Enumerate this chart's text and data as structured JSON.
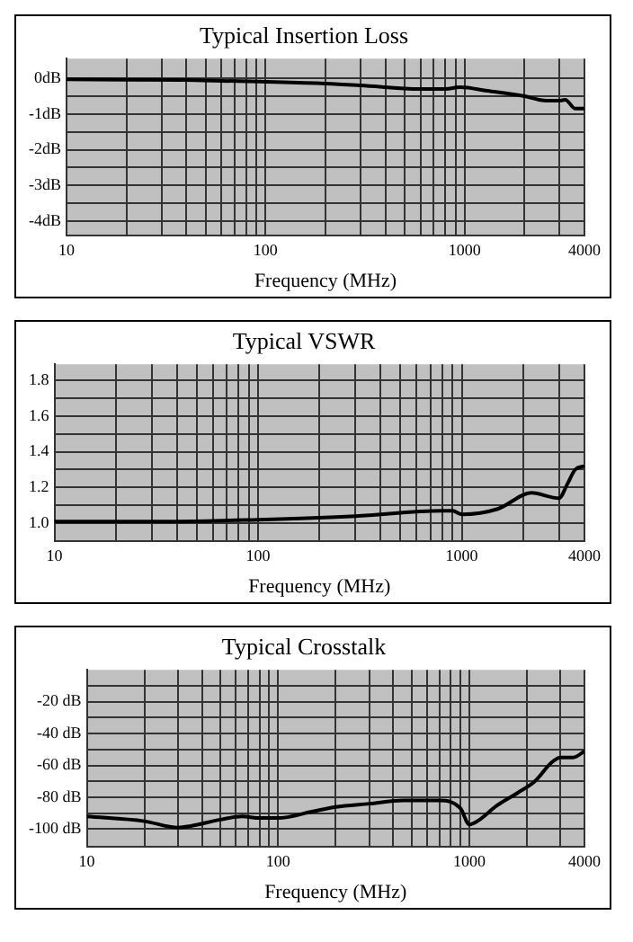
{
  "chart_data": [
    {
      "type": "line",
      "title": "Typical Insertion Loss",
      "xlabel": "Frequency (MHz)",
      "log": "x",
      "grid": true,
      "marker": "none",
      "line_style": "solid",
      "xlim": [
        10,
        4000
      ],
      "xticks": [
        10,
        {
          "value": 20,
          "label": null
        },
        {
          "value": 30,
          "label": null
        },
        {
          "value": 40,
          "label": null
        },
        {
          "value": 50,
          "label": null
        },
        {
          "value": 60,
          "label": null
        },
        {
          "value": 70,
          "label": null
        },
        {
          "value": 80,
          "label": null
        },
        {
          "value": 90,
          "label": null
        },
        100,
        {
          "value": 200,
          "label": null
        },
        {
          "value": 300,
          "label": null
        },
        {
          "value": 400,
          "label": null
        },
        {
          "value": 500,
          "label": null
        },
        {
          "value": 600,
          "label": null
        },
        {
          "value": 700,
          "label": null
        },
        {
          "value": 800,
          "label": null
        },
        {
          "value": 900,
          "label": null
        },
        1000,
        {
          "value": 2000,
          "label": null
        },
        {
          "value": 3000,
          "label": null
        },
        4000
      ],
      "ylim": [
        -4.4,
        0.55
      ],
      "yticks": [
        {
          "value": 0,
          "label": "0dB"
        },
        {
          "value": -0.5,
          "label": null
        },
        {
          "value": -1,
          "label": "-1dB"
        },
        {
          "value": -1.5,
          "label": null
        },
        {
          "value": -2,
          "label": "-2dB"
        },
        {
          "value": -2.5,
          "label": null
        },
        {
          "value": -3,
          "label": "-3dB"
        },
        {
          "value": -3.5,
          "label": null
        },
        {
          "value": -4,
          "label": "-4dB"
        }
      ],
      "series": [
        {
          "color": "#000000",
          "x": [
            10,
            20,
            40,
            100,
            200,
            300,
            600,
            800,
            950,
            1300,
            2000,
            2500,
            3000,
            3200,
            3600,
            4000
          ],
          "values": [
            -0.03,
            -0.04,
            -0.05,
            -0.1,
            -0.15,
            -0.2,
            -0.3,
            -0.3,
            -0.25,
            -0.35,
            -0.5,
            -0.62,
            -0.63,
            -0.6,
            -0.85,
            -0.85
          ]
        }
      ]
    },
    {
      "type": "line",
      "title": "Typical VSWR",
      "xlabel": "Frequency (MHz)",
      "log": "x",
      "grid": true,
      "marker": "none",
      "line_style": "solid",
      "xlim": [
        10,
        4000
      ],
      "xticks": [
        10,
        {
          "value": 20,
          "label": null
        },
        {
          "value": 30,
          "label": null
        },
        {
          "value": 40,
          "label": null
        },
        {
          "value": 50,
          "label": null
        },
        {
          "value": 60,
          "label": null
        },
        {
          "value": 70,
          "label": null
        },
        {
          "value": 80,
          "label": null
        },
        {
          "value": 90,
          "label": null
        },
        100,
        {
          "value": 200,
          "label": null
        },
        {
          "value": 300,
          "label": null
        },
        {
          "value": 400,
          "label": null
        },
        {
          "value": 500,
          "label": null
        },
        {
          "value": 600,
          "label": null
        },
        {
          "value": 700,
          "label": null
        },
        {
          "value": 800,
          "label": null
        },
        {
          "value": 900,
          "label": null
        },
        1000,
        {
          "value": 2000,
          "label": null
        },
        {
          "value": 3000,
          "label": null
        },
        4000
      ],
      "ylim": [
        0.9,
        1.89
      ],
      "yticks": [
        {
          "value": 1,
          "label": "1.0"
        },
        {
          "value": 1.1,
          "label": null
        },
        1.2,
        {
          "value": 1.3,
          "label": null
        },
        1.4,
        {
          "value": 1.5,
          "label": null
        },
        1.6,
        {
          "value": 1.7,
          "label": null
        },
        1.8
      ],
      "series": [
        {
          "color": "#000000",
          "x": [
            10,
            40,
            100,
            300,
            800,
            900,
            1000,
            1500,
            2200,
            3000,
            3300,
            3600,
            4000
          ],
          "values": [
            1.01,
            1.01,
            1.02,
            1.04,
            1.07,
            1.07,
            1.05,
            1.08,
            1.17,
            1.14,
            1.22,
            1.3,
            1.32
          ]
        }
      ]
    },
    {
      "type": "line",
      "title": "Typical Crosstalk",
      "xlabel": "Frequency (MHz)",
      "log": "x",
      "grid": true,
      "marker": "none",
      "line_style": "solid",
      "xlim": [
        10,
        4000
      ],
      "xticks": [
        10,
        {
          "value": 20,
          "label": null
        },
        {
          "value": 30,
          "label": null
        },
        {
          "value": 40,
          "label": null
        },
        {
          "value": 50,
          "label": null
        },
        {
          "value": 60,
          "label": null
        },
        {
          "value": 70,
          "label": null
        },
        {
          "value": 80,
          "label": null
        },
        {
          "value": 90,
          "label": null
        },
        100,
        {
          "value": 200,
          "label": null
        },
        {
          "value": 300,
          "label": null
        },
        {
          "value": 400,
          "label": null
        },
        {
          "value": 500,
          "label": null
        },
        {
          "value": 600,
          "label": null
        },
        {
          "value": 700,
          "label": null
        },
        {
          "value": 800,
          "label": null
        },
        {
          "value": 900,
          "label": null
        },
        1000,
        {
          "value": 2000,
          "label": null
        },
        {
          "value": 3000,
          "label": null
        },
        4000
      ],
      "ylim": [
        -111,
        0
      ],
      "yticks": [
        {
          "value": -10,
          "label": null
        },
        {
          "value": -20,
          "label": "-20 dB"
        },
        {
          "value": -30,
          "label": null
        },
        {
          "value": -40,
          "label": "-40 dB"
        },
        {
          "value": -50,
          "label": null
        },
        {
          "value": -60,
          "label": "-60 dB"
        },
        {
          "value": -70,
          "label": null
        },
        {
          "value": -80,
          "label": "-80 dB"
        },
        {
          "value": -90,
          "label": null
        },
        {
          "value": -100,
          "label": "-100 dB"
        }
      ],
      "series": [
        {
          "color": "#000000",
          "x": [
            10,
            20,
            30,
            35,
            50,
            65,
            80,
            100,
            150,
            200,
            300,
            450,
            700,
            900,
            1000,
            1100,
            1400,
            1800,
            2200,
            2700,
            3000,
            3500,
            4000
          ],
          "values": [
            -92,
            -95,
            -99,
            -98,
            -94,
            -92,
            -93,
            -93,
            -89,
            -86,
            -84,
            -82,
            -82,
            -87,
            -97,
            -95,
            -85,
            -77,
            -70,
            -58,
            -55,
            -55,
            -51
          ]
        }
      ]
    }
  ]
}
